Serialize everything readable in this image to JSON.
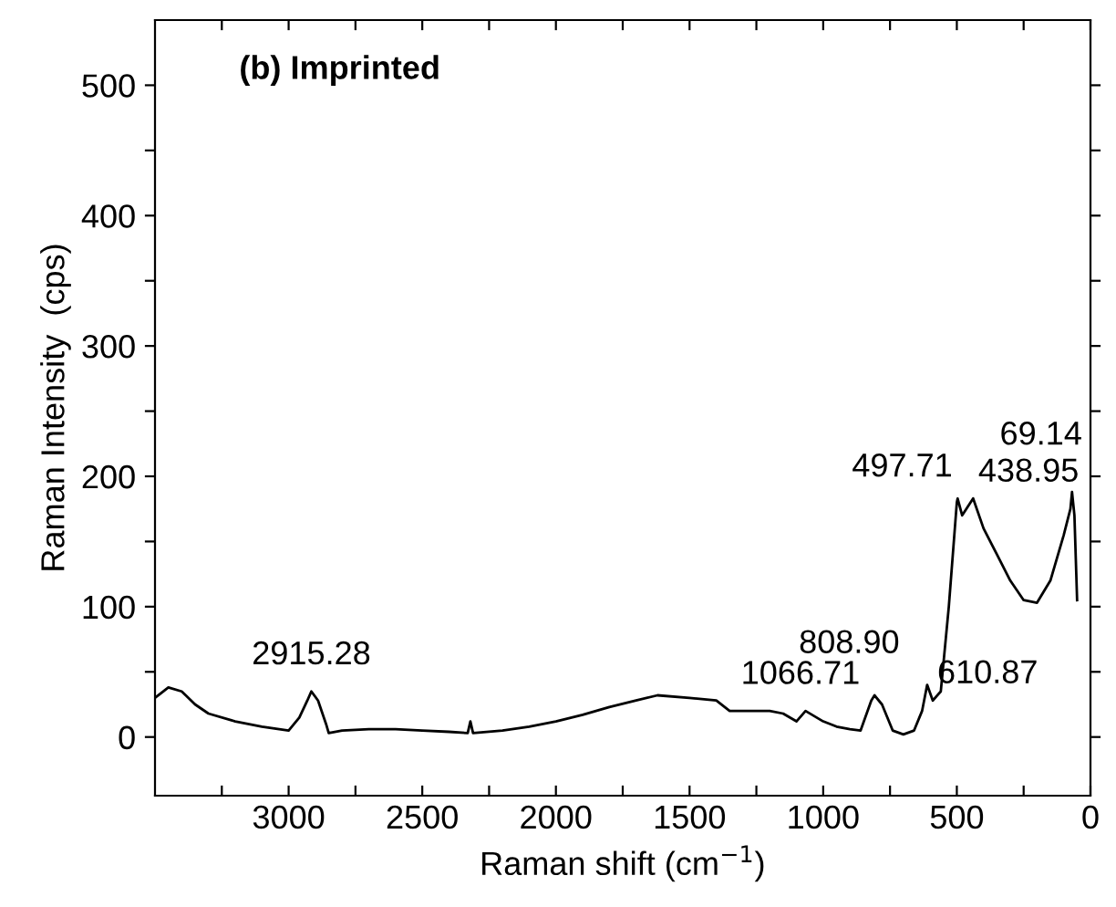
{
  "chart_data": {
    "type": "line",
    "title": "(b) Imprinted",
    "xlabel": "Raman shift (cm$^{−1}$)",
    "ylabel": "Raman Intensity  (cps)",
    "xlim": [
      3500,
      0
    ],
    "ylim": [
      -45,
      550
    ],
    "xticks": [
      3000,
      2500,
      2000,
      1500,
      1000,
      500,
      0,
      {
        "value": 3250,
        "label": null
      },
      {
        "value": 2750,
        "label": null
      },
      {
        "value": 2250,
        "label": null
      },
      {
        "value": 1750,
        "label": null
      },
      {
        "value": 1250,
        "label": null
      },
      {
        "value": 750,
        "label": null
      },
      {
        "value": 250,
        "label": null
      }
    ],
    "yticks": [
      0,
      100,
      200,
      300,
      400,
      500,
      {
        "value": 50,
        "label": null
      },
      {
        "value": 150,
        "label": null
      },
      {
        "value": 250,
        "label": null
      },
      {
        "value": 350,
        "label": null
      },
      {
        "value": 450,
        "label": null
      }
    ],
    "grid": false,
    "legend": false,
    "marker": "none",
    "line_style": "solid",
    "x": [
      3500,
      3450,
      3400,
      3350,
      3300,
      3200,
      3100,
      3000,
      2960,
      2930,
      2915,
      2890,
      2860,
      2850,
      2800,
      2700,
      2600,
      2500,
      2400,
      2330,
      2320,
      2310,
      2200,
      2100,
      2000,
      1900,
      1800,
      1700,
      1620,
      1500,
      1400,
      1350,
      1300,
      1200,
      1150,
      1100,
      1066,
      1000,
      950,
      900,
      860,
      820,
      808,
      780,
      740,
      700,
      660,
      630,
      611,
      590,
      560,
      530,
      500,
      497,
      480,
      439,
      400,
      350,
      300,
      250,
      200,
      150,
      100,
      75,
      69,
      60,
      50
    ],
    "series": [
      {
        "color": "#000000",
        "values": [
          30,
          38,
          35,
          25,
          18,
          12,
          8,
          5,
          15,
          28,
          35,
          28,
          10,
          3,
          5,
          6,
          6,
          5,
          4,
          3,
          12,
          3,
          5,
          8,
          12,
          17,
          23,
          28,
          32,
          30,
          28,
          20,
          20,
          20,
          18,
          12,
          20,
          12,
          8,
          6,
          5,
          28,
          32,
          25,
          5,
          2,
          5,
          20,
          40,
          28,
          35,
          100,
          180,
          183,
          170,
          183,
          160,
          140,
          120,
          105,
          103,
          120,
          155,
          175,
          188,
          170,
          105
        ]
      }
    ],
    "annotations": [
      {
        "text": "2915.28",
        "x": 2915,
        "y": 35
      },
      {
        "text": "1066.71",
        "x": 1066,
        "y": 20
      },
      {
        "text": "808.90",
        "x": 808,
        "y": 32
      },
      {
        "text": "610.87",
        "x": 611,
        "y": 40
      },
      {
        "text": "497.71",
        "x": 497,
        "y": 183
      },
      {
        "text": "438.95",
        "x": 439,
        "y": 183
      },
      {
        "text": "69.14",
        "x": 69,
        "y": 188
      }
    ]
  }
}
